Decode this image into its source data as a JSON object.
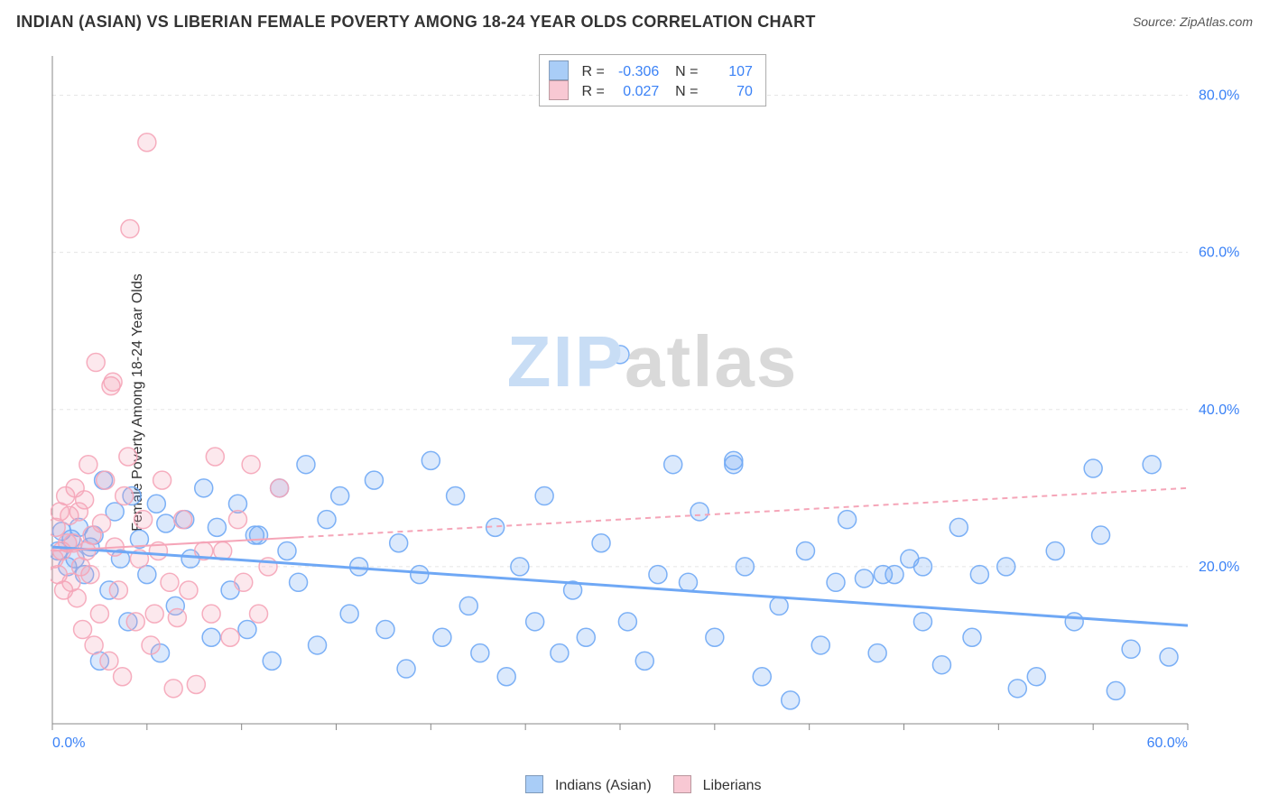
{
  "header": {
    "title": "INDIAN (ASIAN) VS LIBERIAN FEMALE POVERTY AMONG 18-24 YEAR OLDS CORRELATION CHART",
    "source_prefix": "Source: ",
    "source_name": "ZipAtlas.com"
  },
  "y_axis_label": "Female Poverty Among 18-24 Year Olds",
  "watermark": {
    "zip_text": "ZIP",
    "zip_color": "#c8ddf5",
    "atlas_text": "atlas",
    "atlas_color": "#d9d9d9"
  },
  "chart": {
    "type": "scatter",
    "background_color": "#ffffff",
    "grid_color": "#e5e5e5",
    "grid_dash": "4,4",
    "axis_color": "#888888",
    "tick_color": "#888888",
    "axis_border_sides": [
      "left",
      "bottom"
    ],
    "xlim": [
      0,
      60
    ],
    "ylim": [
      0,
      85
    ],
    "x_ticks": [
      0,
      5,
      10,
      15,
      20,
      25,
      30,
      35,
      40,
      45,
      50,
      55,
      60
    ],
    "y_gridlines": [
      0,
      20,
      40,
      60,
      80
    ],
    "x_tick_labels": {
      "0": "0.0%",
      "60": "60.0%"
    },
    "y_tick_labels": {
      "20": "20.0%",
      "40": "40.0%",
      "60": "60.0%",
      "80": "80.0%"
    },
    "x_label_color": "#3b82f6",
    "y_label_color": "#3b82f6",
    "tick_label_fontsize": 16,
    "marker_radius": 10,
    "marker_fill_opacity": 0.25,
    "marker_stroke_opacity": 0.9,
    "marker_stroke_width": 1.5,
    "series": [
      {
        "name": "Indians (Asian)",
        "color": "#6fa8f5",
        "trend": {
          "x1": 0,
          "y1": 22.5,
          "x2": 60,
          "y2": 12.5,
          "width": 3,
          "dash": null,
          "solid_until_x": 60
        },
        "points": [
          [
            0.3,
            22
          ],
          [
            0.5,
            24.5
          ],
          [
            0.8,
            20
          ],
          [
            1.0,
            23.5
          ],
          [
            1.2,
            21
          ],
          [
            1.4,
            25
          ],
          [
            1.7,
            19
          ],
          [
            2.0,
            22.5
          ],
          [
            2.2,
            24
          ],
          [
            2.5,
            8
          ],
          [
            2.7,
            31
          ],
          [
            3.0,
            17
          ],
          [
            3.3,
            27
          ],
          [
            3.6,
            21
          ],
          [
            4.0,
            13
          ],
          [
            4.2,
            29
          ],
          [
            4.6,
            23.5
          ],
          [
            5.0,
            19
          ],
          [
            5.5,
            28
          ],
          [
            5.7,
            9
          ],
          [
            6.0,
            25.5
          ],
          [
            6.5,
            15
          ],
          [
            7.0,
            26
          ],
          [
            7.3,
            21
          ],
          [
            8.0,
            30
          ],
          [
            8.4,
            11
          ],
          [
            8.7,
            25
          ],
          [
            9.4,
            17
          ],
          [
            9.8,
            28
          ],
          [
            10.3,
            12
          ],
          [
            10.7,
            24
          ],
          [
            10.9,
            24
          ],
          [
            11.6,
            8
          ],
          [
            12.0,
            30
          ],
          [
            12.4,
            22
          ],
          [
            13.0,
            18
          ],
          [
            13.4,
            33
          ],
          [
            14.0,
            10
          ],
          [
            14.5,
            26
          ],
          [
            15.2,
            29
          ],
          [
            15.7,
            14
          ],
          [
            16.2,
            20
          ],
          [
            17.0,
            31
          ],
          [
            17.6,
            12
          ],
          [
            18.3,
            23
          ],
          [
            18.7,
            7
          ],
          [
            19.4,
            19
          ],
          [
            20.0,
            33.5
          ],
          [
            20.6,
            11
          ],
          [
            21.3,
            29
          ],
          [
            22.0,
            15
          ],
          [
            22.6,
            9
          ],
          [
            23.4,
            25
          ],
          [
            24.0,
            6
          ],
          [
            24.7,
            20
          ],
          [
            25.5,
            13
          ],
          [
            26.0,
            29
          ],
          [
            26.8,
            9
          ],
          [
            27.5,
            17
          ],
          [
            28.2,
            11
          ],
          [
            29.0,
            23
          ],
          [
            30.0,
            47
          ],
          [
            30.4,
            13
          ],
          [
            31.3,
            8
          ],
          [
            32.0,
            19
          ],
          [
            32.8,
            33
          ],
          [
            33.6,
            18
          ],
          [
            34.2,
            27
          ],
          [
            35.0,
            11
          ],
          [
            36.0,
            33
          ],
          [
            36.0,
            33.5
          ],
          [
            36.6,
            20
          ],
          [
            37.5,
            6
          ],
          [
            38.4,
            15
          ],
          [
            39.0,
            3
          ],
          [
            39.8,
            22
          ],
          [
            40.6,
            10
          ],
          [
            41.4,
            18
          ],
          [
            42.0,
            26
          ],
          [
            42.9,
            18.5
          ],
          [
            43.6,
            9
          ],
          [
            43.9,
            19
          ],
          [
            44.5,
            19
          ],
          [
            45.3,
            21
          ],
          [
            46.0,
            13
          ],
          [
            46.0,
            20
          ],
          [
            47.0,
            7.5
          ],
          [
            47.9,
            25
          ],
          [
            48.6,
            11
          ],
          [
            49.0,
            19
          ],
          [
            50.4,
            20
          ],
          [
            51.0,
            4.5
          ],
          [
            52.0,
            6
          ],
          [
            53.0,
            22
          ],
          [
            54.0,
            13
          ],
          [
            55.0,
            32.5
          ],
          [
            55.4,
            24
          ],
          [
            56.2,
            4.2
          ],
          [
            57.0,
            9.5
          ],
          [
            58.1,
            33
          ],
          [
            59.0,
            8.5
          ]
        ]
      },
      {
        "name": "Liberians",
        "color": "#f5a5b8",
        "trend": {
          "x1": 0,
          "y1": 22.0,
          "x2": 60,
          "y2": 30.0,
          "width": 2,
          "dash": "6,5",
          "solid_until_x": 13
        },
        "points": [
          [
            0.1,
            21
          ],
          [
            0.2,
            25
          ],
          [
            0.3,
            19
          ],
          [
            0.4,
            27
          ],
          [
            0.5,
            22
          ],
          [
            0.6,
            17
          ],
          [
            0.7,
            29
          ],
          [
            0.8,
            23
          ],
          [
            0.9,
            26.5
          ],
          [
            1.0,
            18
          ],
          [
            1.1,
            23
          ],
          [
            1.2,
            30
          ],
          [
            1.3,
            16
          ],
          [
            1.4,
            27
          ],
          [
            1.5,
            20
          ],
          [
            1.6,
            12
          ],
          [
            1.7,
            28.5
          ],
          [
            1.8,
            22
          ],
          [
            1.9,
            33
          ],
          [
            2.0,
            19
          ],
          [
            2.1,
            24
          ],
          [
            2.2,
            10
          ],
          [
            2.3,
            46
          ],
          [
            2.5,
            14
          ],
          [
            2.6,
            25.5
          ],
          [
            2.8,
            31
          ],
          [
            3.0,
            8
          ],
          [
            3.1,
            43
          ],
          [
            3.2,
            43.5
          ],
          [
            3.3,
            22.5
          ],
          [
            3.5,
            17
          ],
          [
            3.7,
            6
          ],
          [
            3.8,
            29
          ],
          [
            4.0,
            34
          ],
          [
            4.1,
            63
          ],
          [
            4.4,
            13
          ],
          [
            4.6,
            21
          ],
          [
            4.8,
            26
          ],
          [
            5.0,
            74
          ],
          [
            5.2,
            10
          ],
          [
            5.4,
            14
          ],
          [
            5.6,
            22
          ],
          [
            5.8,
            31
          ],
          [
            6.2,
            18
          ],
          [
            6.4,
            4.5
          ],
          [
            6.6,
            13.5
          ],
          [
            6.9,
            26
          ],
          [
            7.2,
            17
          ],
          [
            7.6,
            5
          ],
          [
            8.0,
            22
          ],
          [
            8.4,
            14
          ],
          [
            8.6,
            34
          ],
          [
            9.0,
            22
          ],
          [
            9.4,
            11
          ],
          [
            9.8,
            26
          ],
          [
            10.1,
            18
          ],
          [
            10.5,
            33
          ],
          [
            10.9,
            14
          ],
          [
            11.4,
            20
          ],
          [
            12.0,
            30
          ]
        ]
      }
    ]
  },
  "top_legend": {
    "rows": [
      {
        "swatch_color": "#a9cdf7",
        "r_label": "R =",
        "r_value": "-0.306",
        "n_label": "N =",
        "n_value": "107"
      },
      {
        "swatch_color": "#f8c8d3",
        "r_label": "R =",
        "r_value": "0.027",
        "n_label": "N =",
        "n_value": "70"
      }
    ]
  },
  "bottom_legend": {
    "items": [
      {
        "swatch_color": "#a9cdf7",
        "label": "Indians (Asian)"
      },
      {
        "swatch_color": "#f8c8d3",
        "label": "Liberians"
      }
    ]
  }
}
